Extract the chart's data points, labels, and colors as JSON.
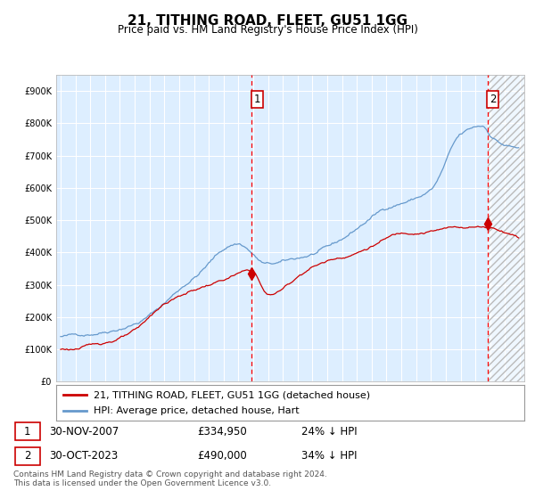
{
  "title": "21, TITHING ROAD, FLEET, GU51 1GG",
  "subtitle": "Price paid vs. HM Land Registry's House Price Index (HPI)",
  "ytick_values": [
    0,
    100000,
    200000,
    300000,
    400000,
    500000,
    600000,
    700000,
    800000,
    900000
  ],
  "ylim": [
    0,
    950000
  ],
  "purchase1_date": "30-NOV-2007",
  "purchase1_price": 334950,
  "purchase1_label": "1",
  "purchase1_pct": "24% ↓ HPI",
  "purchase2_date": "30-OCT-2023",
  "purchase2_price": 490000,
  "purchase2_label": "2",
  "purchase2_pct": "34% ↓ HPI",
  "legend_red": "21, TITHING ROAD, FLEET, GU51 1GG (detached house)",
  "legend_blue": "HPI: Average price, detached house, Hart",
  "footer": "Contains HM Land Registry data © Crown copyright and database right 2024.\nThis data is licensed under the Open Government Licence v3.0.",
  "red_color": "#cc0000",
  "blue_color": "#6699cc",
  "bg_color": "#ddeeff",
  "vline_color": "#ff0000",
  "marker_color": "#cc0000"
}
